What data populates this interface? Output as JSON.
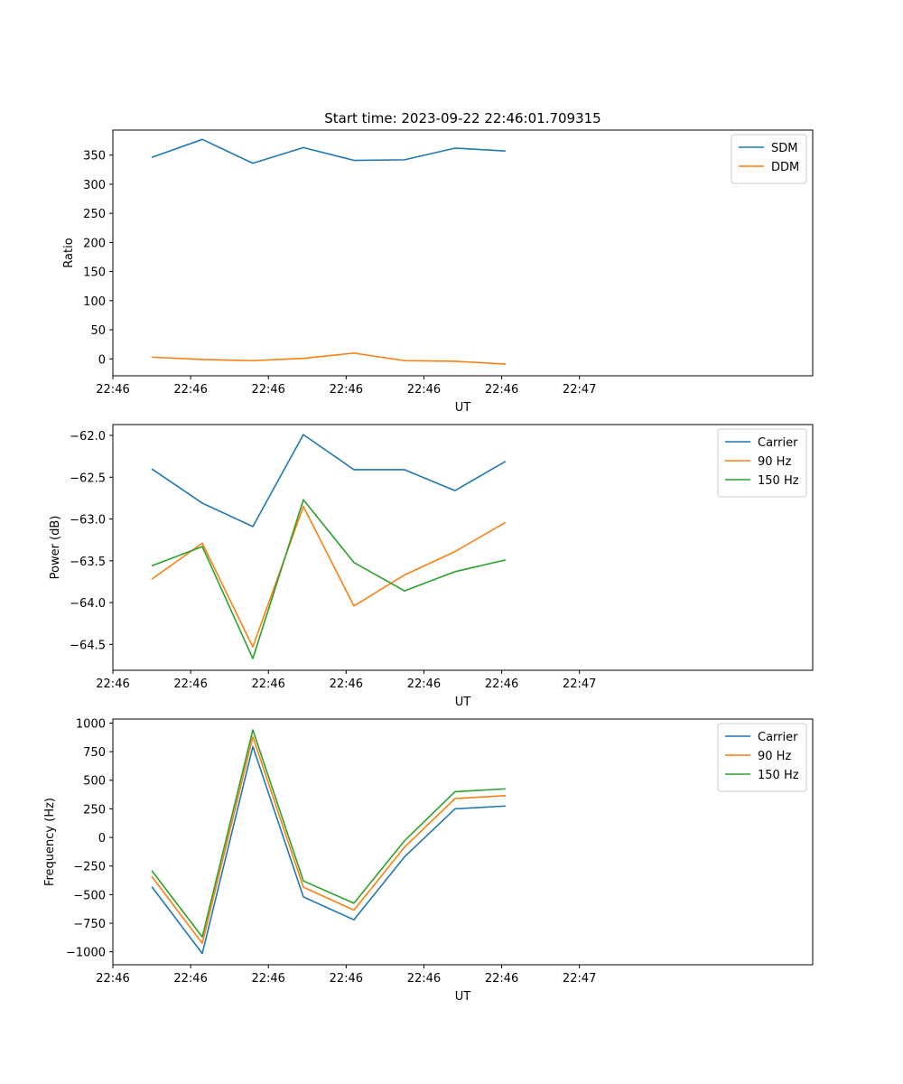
{
  "title": "Start time: 2023-09-22 22:46:01.709315",
  "chart_data": [
    {
      "type": "line",
      "title": "Start time: 2023-09-22 22:46:01.709315",
      "xlabel": "UT",
      "ylabel": "Ratio",
      "xlim": [
        0,
        9
      ],
      "ylim": [
        -29,
        393
      ],
      "x": [
        0.5,
        1.15,
        1.8,
        2.45,
        3.1,
        3.75,
        4.4,
        5.05
      ],
      "xticks": [
        0,
        1,
        2,
        3,
        4,
        5,
        6
      ],
      "xtick_labels": [
        "22:46",
        "22:46",
        "22:46",
        "22:46",
        "22:46",
        "22:46",
        "22:47"
      ],
      "yticks": [
        0,
        50,
        100,
        150,
        200,
        250,
        300,
        350
      ],
      "ytick_labels": [
        "0",
        "50",
        "100",
        "150",
        "200",
        "250",
        "300",
        "350"
      ],
      "legend_position": "top-right",
      "series": [
        {
          "name": "SDM",
          "color": "#1f77b4",
          "values": [
            346,
            377,
            336,
            363,
            341,
            342,
            362,
            357
          ]
        },
        {
          "name": "DDM",
          "color": "#ff7f0e",
          "values": [
            3,
            -1,
            -3,
            1,
            10,
            -3,
            -4,
            -9
          ]
        }
      ]
    },
    {
      "type": "line",
      "title": "",
      "xlabel": "UT",
      "ylabel": "Power (dB)",
      "xlim": [
        0,
        9
      ],
      "ylim": [
        -64.81,
        -61.87
      ],
      "x": [
        0.5,
        1.15,
        1.8,
        2.45,
        3.1,
        3.75,
        4.4,
        5.05
      ],
      "xticks": [
        0,
        1,
        2,
        3,
        4,
        5,
        6
      ],
      "xtick_labels": [
        "22:46",
        "22:46",
        "22:46",
        "22:46",
        "22:46",
        "22:46",
        "22:47"
      ],
      "yticks": [
        -64.5,
        -64.0,
        -63.5,
        -63.0,
        -62.5,
        -62.0
      ],
      "ytick_labels": [
        "−64.5",
        "−64.0",
        "−63.5",
        "−63.0",
        "−62.5",
        "−62.0"
      ],
      "legend_position": "top-right",
      "series": [
        {
          "name": "Carrier",
          "color": "#1f77b4",
          "values": [
            -62.4,
            -62.81,
            -63.09,
            -61.99,
            -62.41,
            -62.41,
            -62.66,
            -62.31
          ]
        },
        {
          "name": "90 Hz",
          "color": "#ff7f0e",
          "values": [
            -63.72,
            -63.29,
            -64.53,
            -62.85,
            -64.04,
            -63.67,
            -63.39,
            -63.04
          ]
        },
        {
          "name": "150 Hz",
          "color": "#2ca02c",
          "values": [
            -63.56,
            -63.33,
            -64.67,
            -62.77,
            -63.52,
            -63.86,
            -63.63,
            -63.49
          ]
        }
      ]
    },
    {
      "type": "line",
      "title": "",
      "xlabel": "UT",
      "ylabel": "Frequency (Hz)",
      "xlim": [
        0,
        9
      ],
      "ylim": [
        -1113,
        1035
      ],
      "x": [
        0.5,
        1.15,
        1.8,
        2.45,
        3.1,
        3.75,
        4.4,
        5.05
      ],
      "xticks": [
        0,
        1,
        2,
        3,
        4,
        5,
        6
      ],
      "xtick_labels": [
        "22:46",
        "22:46",
        "22:46",
        "22:46",
        "22:46",
        "22:46",
        "22:47"
      ],
      "yticks": [
        -1000,
        -750,
        -500,
        -250,
        0,
        250,
        500,
        750,
        1000
      ],
      "ytick_labels": [
        "−1000",
        "−750",
        "−500",
        "−250",
        "0",
        "250",
        "500",
        "750",
        "1000"
      ],
      "legend_position": "top-right",
      "series": [
        {
          "name": "Carrier",
          "color": "#1f77b4",
          "values": [
            -430,
            -1015,
            795,
            -520,
            -720,
            -170,
            250,
            275
          ]
        },
        {
          "name": "90 Hz",
          "color": "#ff7f0e",
          "values": [
            -340,
            -925,
            880,
            -435,
            -635,
            -85,
            340,
            365
          ]
        },
        {
          "name": "150 Hz",
          "color": "#2ca02c",
          "values": [
            -290,
            -870,
            940,
            -380,
            -575,
            -30,
            400,
            425
          ]
        }
      ]
    }
  ]
}
